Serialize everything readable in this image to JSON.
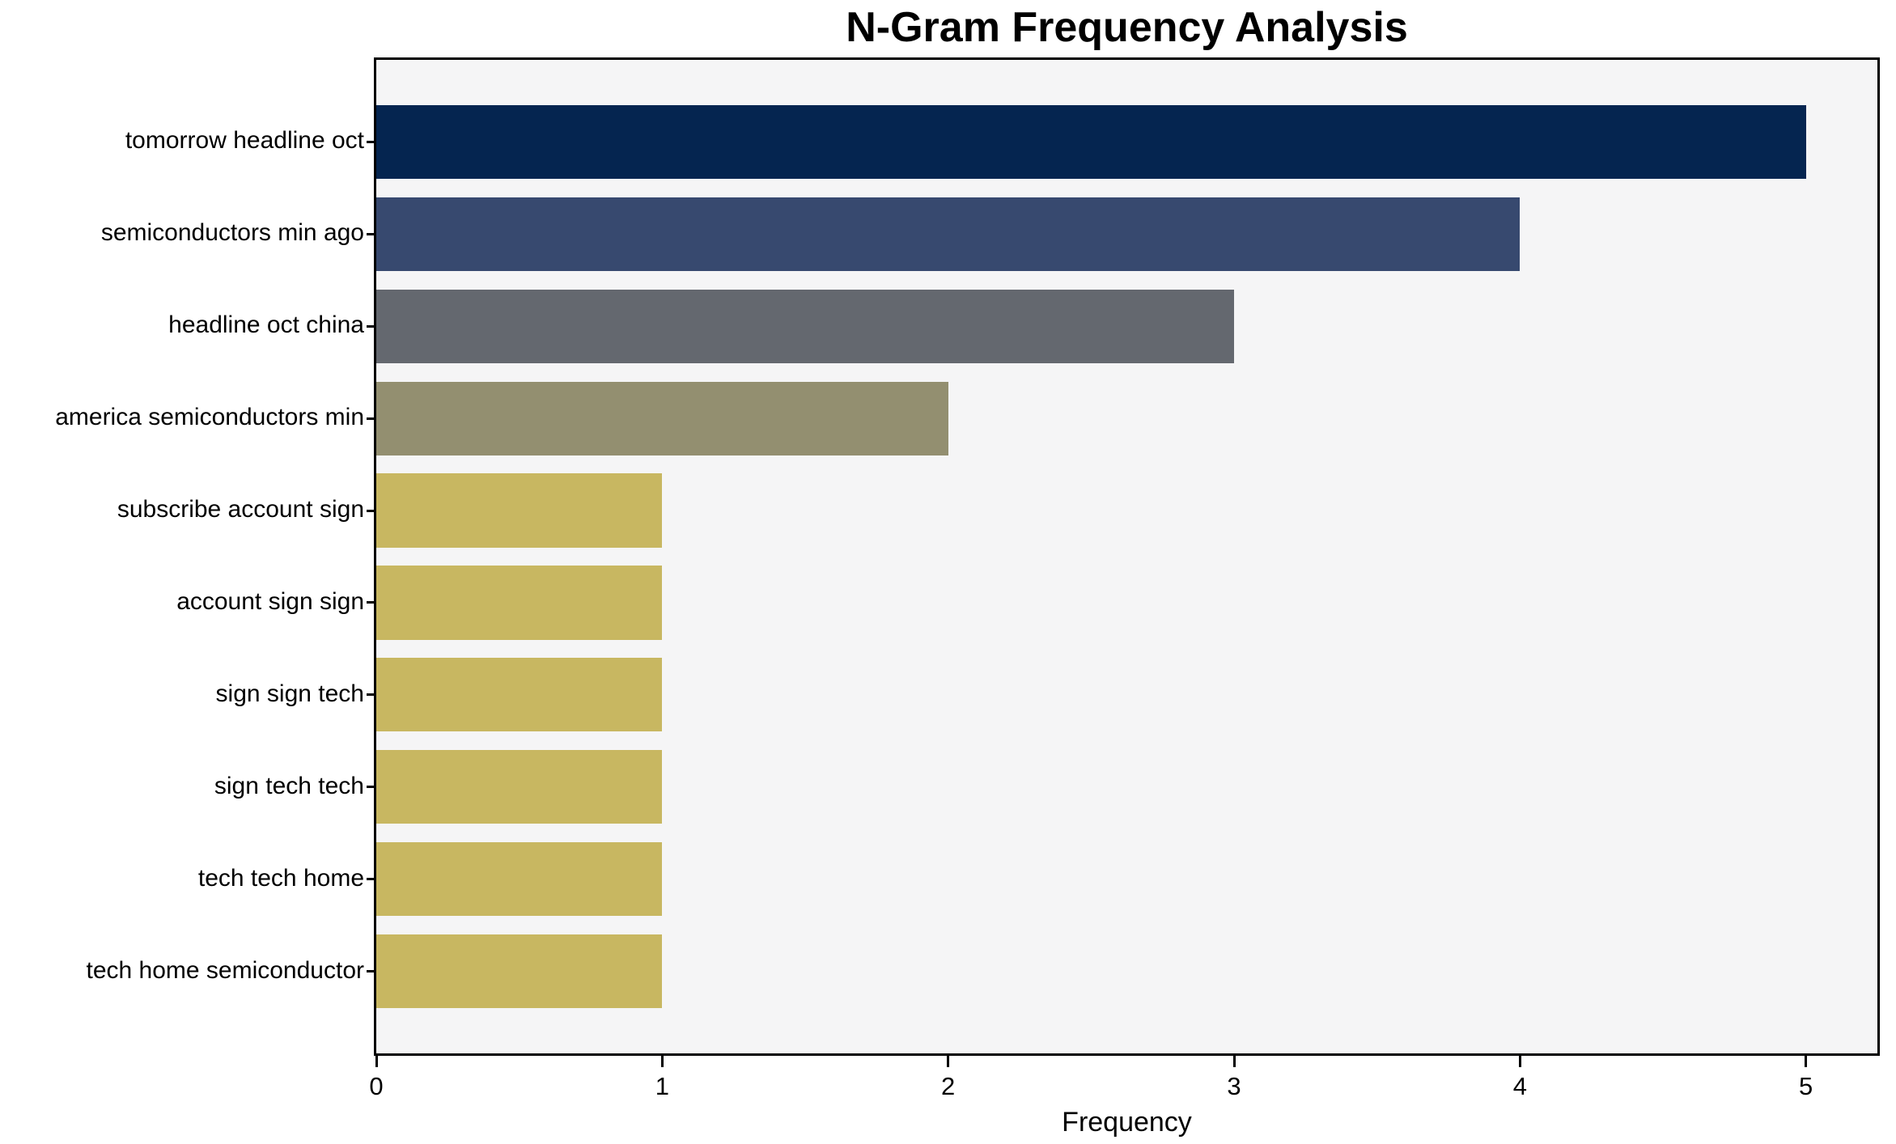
{
  "chart_data": {
    "type": "bar",
    "orientation": "horizontal",
    "title": "N-Gram Frequency Analysis",
    "xlabel": "Frequency",
    "ylabel": "",
    "categories": [
      "tomorrow headline oct",
      "semiconductors min ago",
      "headline oct china",
      "america semiconductors min",
      "subscribe account sign",
      "account sign sign",
      "sign sign tech",
      "sign tech tech",
      "tech tech home",
      "tech home semiconductor"
    ],
    "values": [
      5,
      4,
      3,
      2,
      1,
      1,
      1,
      1,
      1,
      1
    ],
    "bar_colors": [
      "#052550",
      "#37496f",
      "#64686f",
      "#938f70",
      "#c8b761",
      "#c8b761",
      "#c8b761",
      "#c8b761",
      "#c8b761",
      "#c8b761"
    ],
    "xticks": [
      0,
      1,
      2,
      3,
      4,
      5
    ],
    "xlim": [
      0,
      5.25
    ],
    "bar_height_fraction": 0.8,
    "y_edge_padding_units": 0.89,
    "grid": false,
    "legend_position": "none",
    "plot_background": "#f5f5f6",
    "figure_background": "#ffffff",
    "spine_color": "#000000",
    "text_color": "#000000"
  }
}
